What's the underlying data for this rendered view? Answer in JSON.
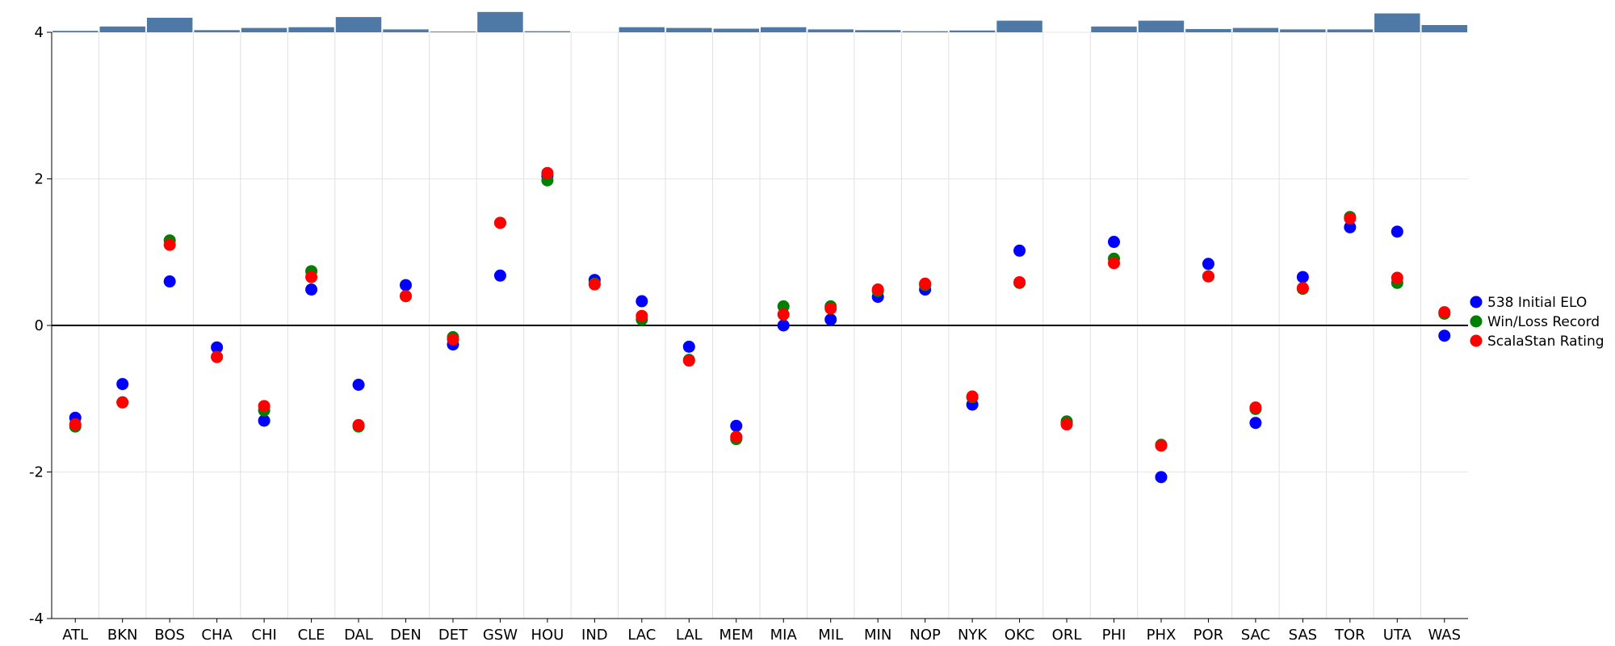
{
  "chart_data": {
    "type": "scatter",
    "title": "",
    "xlabel": "",
    "ylabel": "",
    "ylim": [
      -4,
      4
    ],
    "yticks": [
      "4",
      "2",
      "0",
      "-2",
      "-4"
    ],
    "categories": [
      "ATL",
      "BKN",
      "BOS",
      "CHA",
      "CHI",
      "CLE",
      "DAL",
      "DEN",
      "DET",
      "GSW",
      "HOU",
      "IND",
      "LAC",
      "LAL",
      "MEM",
      "MIA",
      "MIL",
      "MIN",
      "NOP",
      "NYK",
      "OKC",
      "ORL",
      "PHI",
      "PHX",
      "POR",
      "SAC",
      "SAS",
      "TOR",
      "UTA",
      "WAS"
    ],
    "series": [
      {
        "name": "538 Initial ELO",
        "color": "#0000ff",
        "values": [
          -1.26,
          -0.8,
          0.6,
          -0.3,
          -1.3,
          0.49,
          -0.81,
          0.55,
          -0.26,
          0.68,
          2.04,
          0.62,
          0.33,
          -0.29,
          -1.37,
          0.0,
          0.08,
          0.39,
          0.49,
          -1.08,
          1.02,
          -1.34,
          1.14,
          -2.07,
          0.84,
          -1.33,
          0.66,
          1.34,
          1.28,
          -0.14
        ]
      },
      {
        "name": "Win/Loss Record",
        "color": "#008000",
        "values": [
          -1.38,
          -1.05,
          1.16,
          -0.43,
          -1.16,
          0.74,
          -1.38,
          0.4,
          -0.16,
          1.4,
          1.98,
          0.57,
          0.08,
          -0.47,
          -1.55,
          0.26,
          0.26,
          0.47,
          0.55,
          -0.98,
          0.58,
          -1.31,
          0.91,
          -1.63,
          0.67,
          -1.14,
          0.5,
          1.48,
          0.58,
          0.16
        ]
      },
      {
        "name": "ScalaStan Rating",
        "color": "#ff0000",
        "values": [
          -1.35,
          -1.05,
          1.1,
          -0.43,
          -1.1,
          0.66,
          -1.36,
          0.4,
          -0.19,
          1.4,
          2.08,
          0.56,
          0.13,
          -0.48,
          -1.52,
          0.15,
          0.23,
          0.49,
          0.57,
          -0.97,
          0.59,
          -1.35,
          0.85,
          -1.64,
          0.67,
          -1.12,
          0.51,
          1.46,
          0.65,
          0.18
        ]
      }
    ],
    "top_bars": {
      "color": "#4e79a7",
      "values": [
        0.2,
        0.8,
        2.0,
        0.3,
        0.6,
        0.7,
        2.1,
        0.4,
        0.1,
        2.8,
        0.15,
        0,
        0.7,
        0.6,
        0.5,
        0.7,
        0.4,
        0.3,
        0.15,
        0.25,
        1.6,
        0,
        0.8,
        1.6,
        0.45,
        0.6,
        0.4,
        0.4,
        2.6,
        1.0
      ]
    },
    "grid": true,
    "legend_position": "right"
  }
}
